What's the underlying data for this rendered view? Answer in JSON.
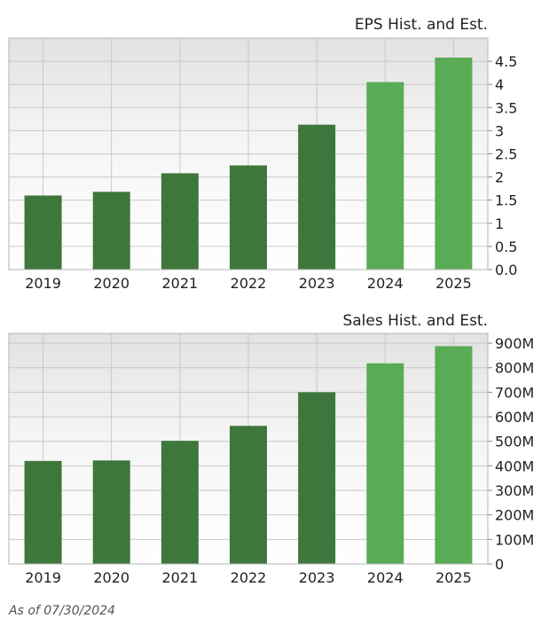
{
  "chart_data": [
    {
      "type": "bar",
      "title": "EPS Hist. and Est.",
      "categories": [
        "2019",
        "2020",
        "2021",
        "2022",
        "2023",
        "2024",
        "2025"
      ],
      "values": [
        1.6,
        1.68,
        2.08,
        2.25,
        3.13,
        4.05,
        4.58
      ],
      "estimate_from_index": 5,
      "ylim": [
        0,
        5
      ],
      "yticks": [
        0,
        0.5,
        1,
        1.5,
        2,
        2.5,
        3,
        3.5,
        4,
        4.5
      ],
      "ytick_labels": [
        "0.0",
        "0.5",
        "1",
        "1.5",
        "2",
        "2.5",
        "3",
        "3.5",
        "4",
        "4.5"
      ],
      "grid": true,
      "colors": {
        "historical": "#3e773b",
        "estimate": "#5aab55"
      }
    },
    {
      "type": "bar",
      "title": "Sales Hist. and Est.",
      "categories": [
        "2019",
        "2020",
        "2021",
        "2022",
        "2023",
        "2024",
        "2025"
      ],
      "values": [
        420,
        422,
        502,
        563,
        700,
        818,
        888
      ],
      "unit": "M",
      "estimate_from_index": 5,
      "ylim": [
        0,
        940
      ],
      "yticks": [
        0,
        100,
        200,
        300,
        400,
        500,
        600,
        700,
        800,
        900
      ],
      "ytick_labels": [
        "0",
        "100M",
        "200M",
        "300M",
        "400M",
        "500M",
        "600M",
        "700M",
        "800M",
        "900M"
      ],
      "grid": true,
      "colors": {
        "historical": "#3e773b",
        "estimate": "#5aab55"
      }
    }
  ],
  "footer": {
    "as_of": "As of 07/30/2024"
  }
}
